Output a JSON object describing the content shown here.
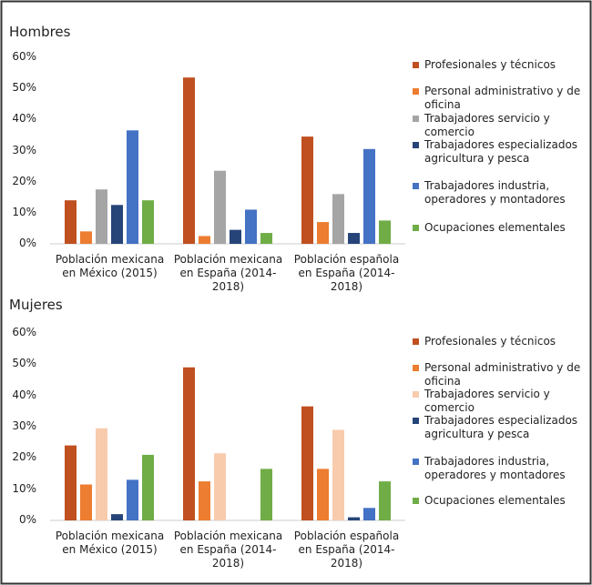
{
  "chart_data": [
    {
      "type": "bar",
      "title": "Hombres",
      "categories": [
        "Población mexicana en México (2015)",
        "Población mexicana en España (2014-2018)",
        "Población española en España (2014-2018)"
      ],
      "series": [
        {
          "name": "Profesionales y técnicos",
          "color": "#c0501f",
          "values": [
            14,
            53.5,
            34.5
          ]
        },
        {
          "name": "Personal administrativo y de oficina",
          "color": "#ed7d31",
          "values": [
            4,
            2.5,
            7
          ]
        },
        {
          "name": "Trabajadores servicio y comercio",
          "color": "#a5a5a5",
          "values": [
            17.5,
            23.5,
            16
          ]
        },
        {
          "name": "Trabajadores especializados agricultura y pesca",
          "color": "#264478",
          "values": [
            12.5,
            4.5,
            3.5
          ]
        },
        {
          "name": "Trabajadores industria, operadores y montadores",
          "color": "#4472c4",
          "values": [
            36.5,
            11,
            30.5
          ]
        },
        {
          "name": "Ocupaciones elementales",
          "color": "#70ad47",
          "values": [
            14,
            3.5,
            7.5
          ]
        }
      ],
      "ylim": [
        0,
        60
      ],
      "yticks": [
        {
          "value": 0,
          "label": "0%"
        },
        {
          "value": 10,
          "label": "10%"
        },
        {
          "value": 20,
          "label": "20%"
        },
        {
          "value": 30,
          "label": "30%"
        },
        {
          "value": 40,
          "label": "40%"
        },
        {
          "value": 50,
          "label": "50%"
        },
        {
          "value": 60,
          "label": "60%"
        }
      ],
      "grid": false,
      "legend": "right"
    },
    {
      "type": "bar",
      "title": "Mujeres",
      "categories": [
        "Población mexicana en México (2015)",
        "Población mexicana en España (2014-2018)",
        "Población española en España (2014-2018)"
      ],
      "series": [
        {
          "name": "Profesionales y técnicos",
          "color": "#c0501f",
          "values": [
            24,
            49,
            36.5
          ]
        },
        {
          "name": "Personal administrativo y de oficina",
          "color": "#ed7d31",
          "values": [
            11.5,
            12.5,
            16.5
          ]
        },
        {
          "name": "Trabajadores servicio y comercio",
          "color": "#f8cbad",
          "values": [
            29.5,
            21.5,
            29
          ]
        },
        {
          "name": "Trabajadores especializados agricultura y pesca",
          "color": "#264478",
          "values": [
            2,
            0,
            1
          ]
        },
        {
          "name": "Trabajadores industria, operadores y montadores",
          "color": "#4472c4",
          "values": [
            13,
            0,
            4
          ]
        },
        {
          "name": "Ocupaciones elementales",
          "color": "#70ad47",
          "values": [
            21,
            16.5,
            12.5
          ]
        }
      ],
      "ylim": [
        0,
        60
      ],
      "yticks": [
        {
          "value": 0,
          "label": "0%"
        },
        {
          "value": 10,
          "label": "10%"
        },
        {
          "value": 20,
          "label": "20%"
        },
        {
          "value": 30,
          "label": "30%"
        },
        {
          "value": 40,
          "label": "40%"
        },
        {
          "value": 50,
          "label": "50%"
        },
        {
          "value": 60,
          "label": "60%"
        }
      ],
      "grid": false,
      "legend": "right"
    }
  ]
}
